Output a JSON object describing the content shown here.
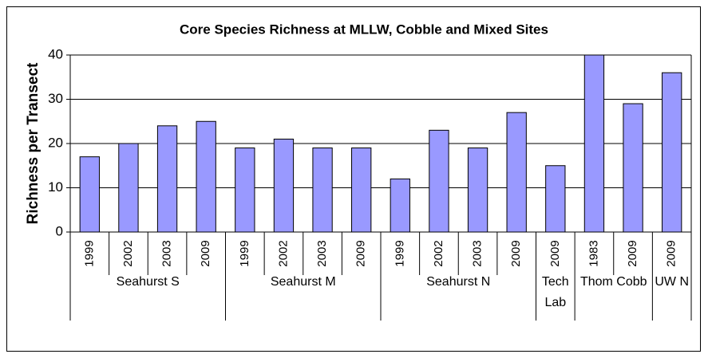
{
  "chart_data": {
    "type": "bar",
    "title": "Core Species Richness at MLLW, Cobble and Mixed Sites",
    "y_label": "Richness per Transect",
    "color": "#9999ff",
    "groups": [
      {
        "name": "Seahurst S",
        "categories": [
          "1999",
          "2002",
          "2003",
          "2009"
        ],
        "values": [
          17,
          20,
          24,
          25
        ]
      },
      {
        "name": "Seahurst M",
        "categories": [
          "1999",
          "2002",
          "2003",
          "2009"
        ],
        "values": [
          19,
          21,
          19,
          19
        ]
      },
      {
        "name": "Seahurst N",
        "categories": [
          "1999",
          "2002",
          "2003",
          "2009"
        ],
        "values": [
          12,
          23,
          19,
          27
        ]
      },
      {
        "name": "Tech Lab",
        "categories": [
          "2009"
        ],
        "values": [
          15
        ]
      },
      {
        "name": "Thom Cobb",
        "categories": [
          "1983",
          "2009"
        ],
        "values": [
          40,
          29
        ]
      },
      {
        "name": "UW N",
        "categories": [
          "2009"
        ],
        "values": [
          36
        ]
      }
    ],
    "ylim": [
      0,
      40
    ],
    "yticks": [
      0,
      10,
      20,
      30,
      40
    ],
    "grid": true
  }
}
